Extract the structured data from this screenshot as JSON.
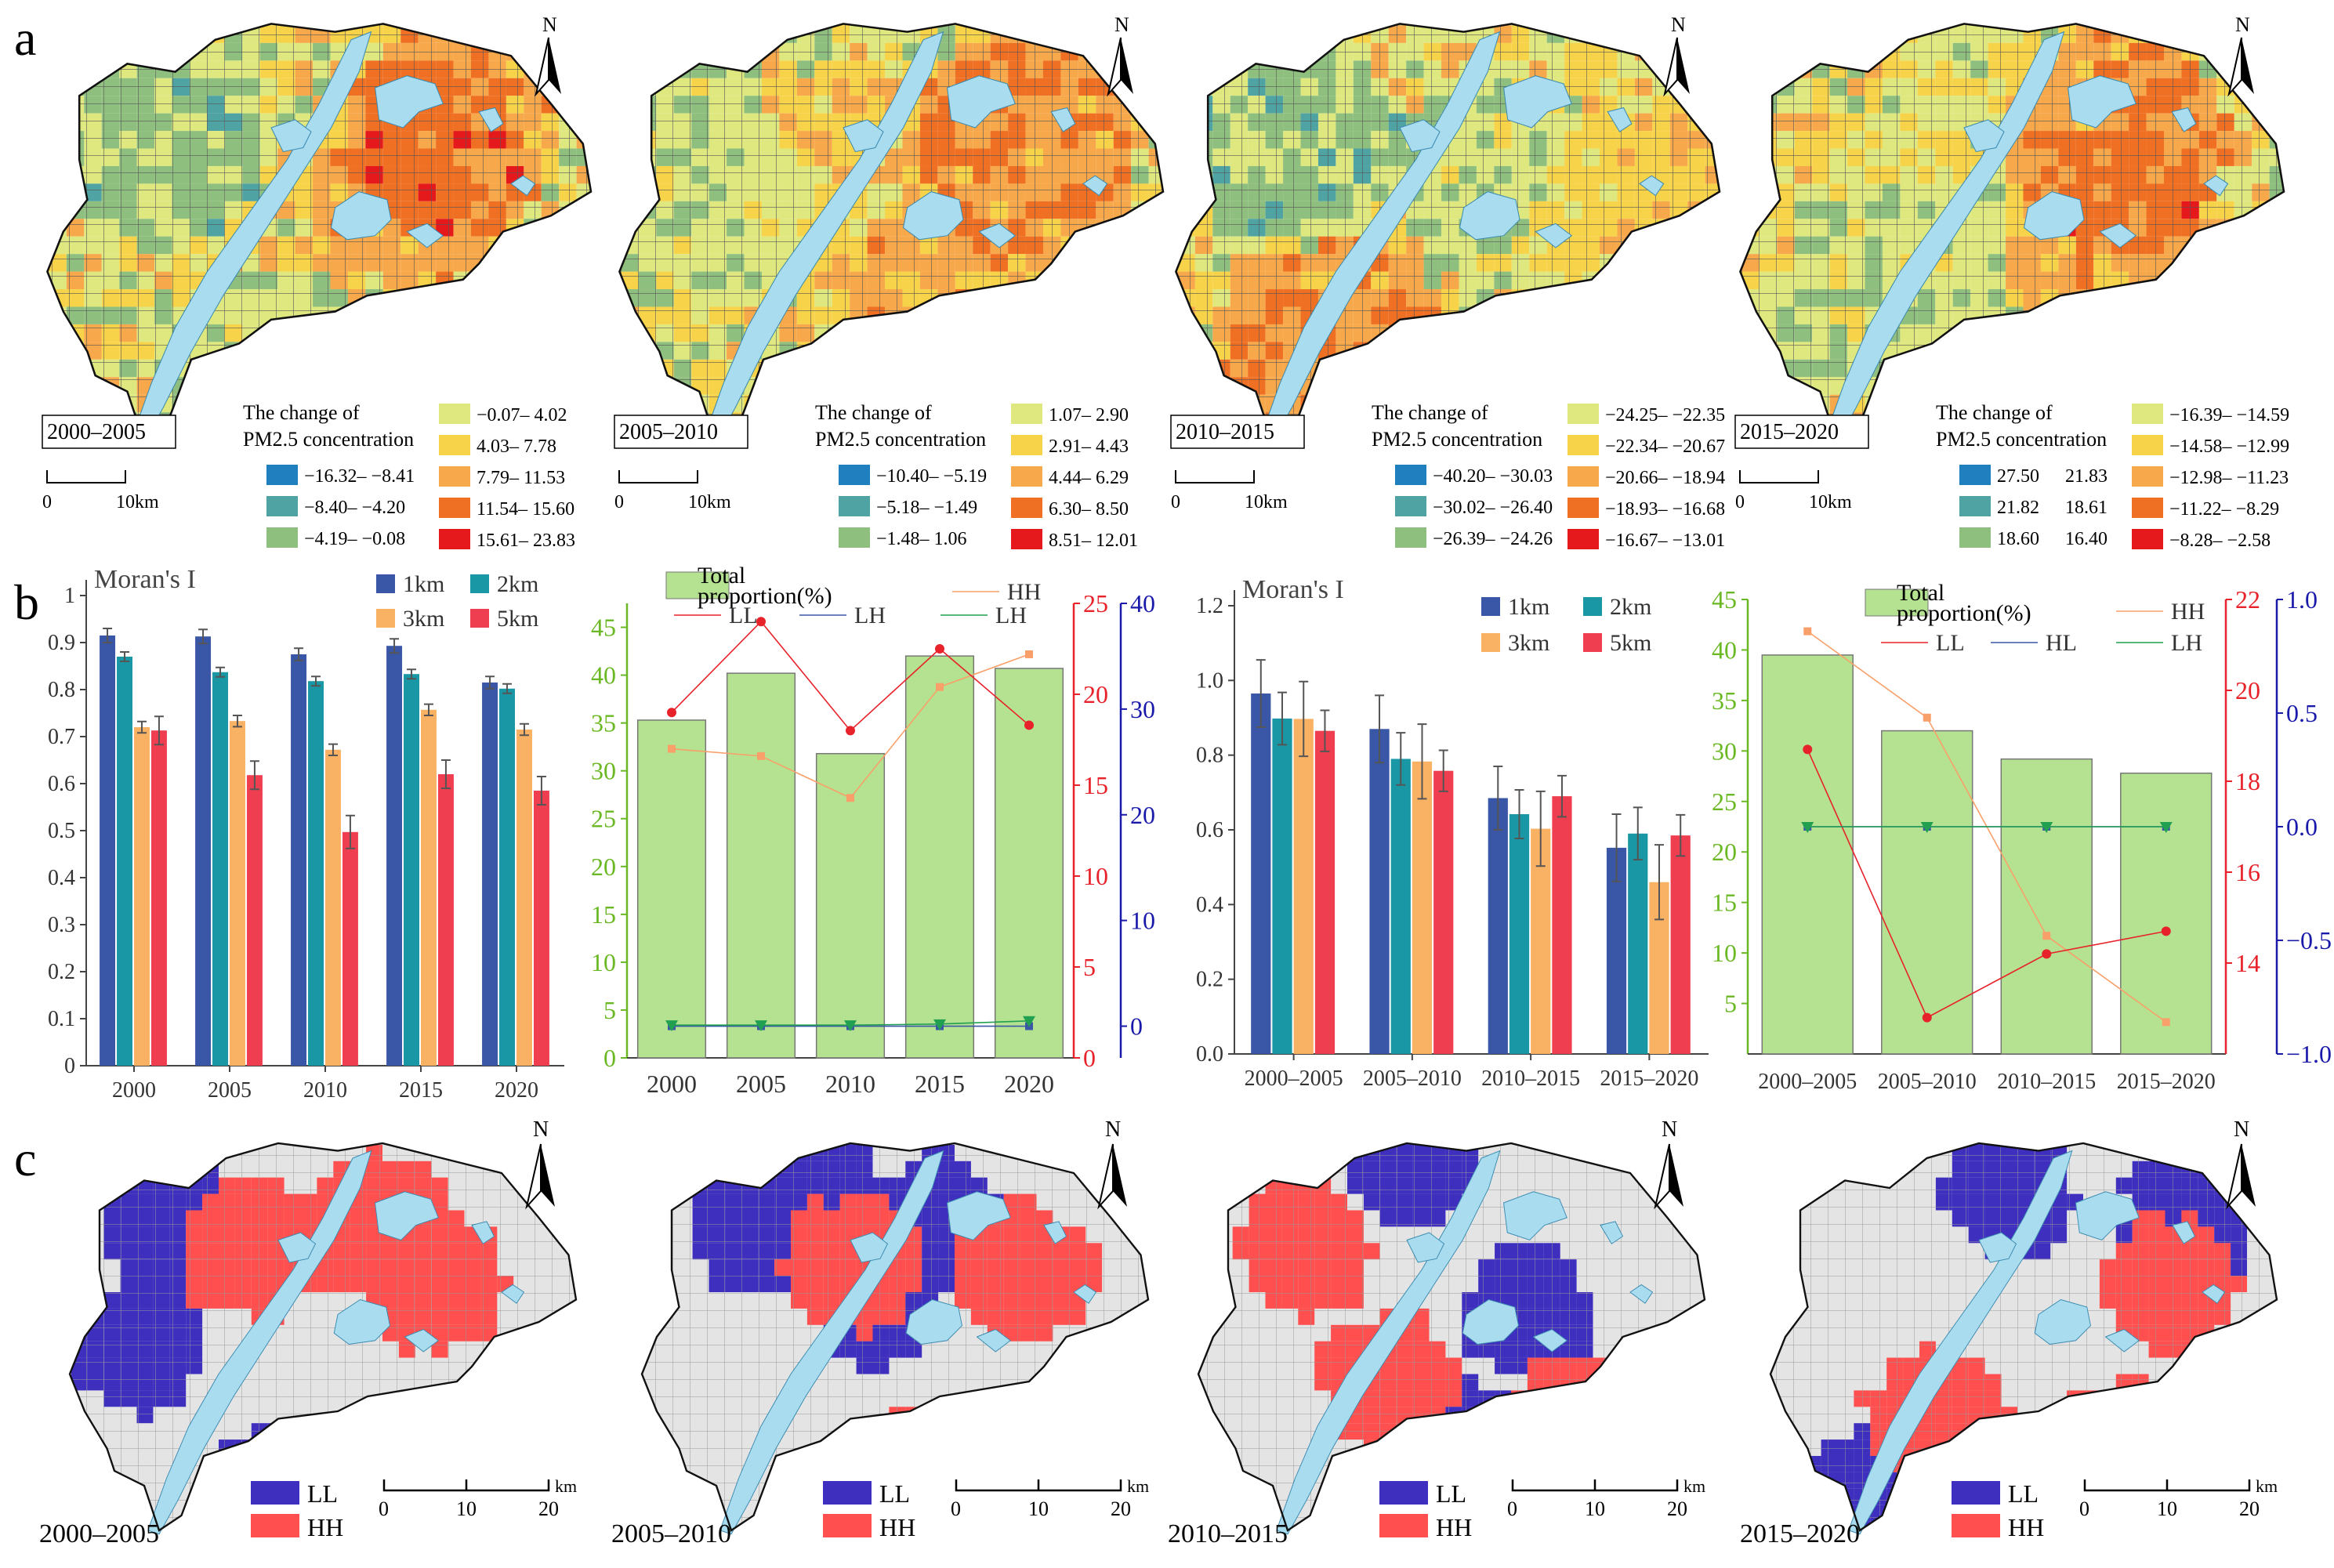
{
  "panel_labels": [
    "a",
    "b",
    "c"
  ],
  "north_label": "N",
  "km_label": "km",
  "colors": {
    "c1": "#1f7fbf",
    "c2": "#4fa3a3",
    "c3": "#8fbf7f",
    "c4": "#dfe77f",
    "c5": "#f7d34a",
    "c6": "#f7a84a",
    "c7": "#ef6f23",
    "c8": "#e5191c",
    "river": "#a9dcef",
    "LL": "#3f2fbf",
    "HH": "#ff4f4f",
    "grey": "#e4e4e4",
    "c1km": "#3a56a6",
    "c2km": "#1a97a4",
    "c3km": "#f9b164",
    "c5km": "#ef3e4f",
    "bar_green": "#b4e290",
    "axis_green": "#6ab823",
    "axis_red": "#e8222a",
    "axis_blue": "#1a1aaa",
    "line_orange": "#f9a06a",
    "line_red": "#e8222a",
    "line_blue": "#3a56a6",
    "line_green": "#20a050"
  },
  "maps_a": [
    {
      "period": "2000–2005",
      "legend_title_1": "The change of",
      "legend_title_2": "PM2.5 concentration",
      "legend": [
        "−16.32– −8.41",
        "−8.40– −4.20",
        "−4.19– −0.08",
        "−0.07– 4.02",
        "4.03– 7.78",
        "7.79– 11.53",
        "11.54– 15.60",
        "15.61– 23.83"
      ],
      "scale": [
        "0",
        "10km"
      ]
    },
    {
      "period": "2005–2010",
      "legend_title_1": "The change of",
      "legend_title_2": "PM2.5 concentration",
      "legend": [
        "−10.40– −5.19",
        "−5.18– −1.49",
        "−1.48– 1.06",
        "1.07– 2.90",
        "2.91– 4.43",
        "4.44– 6.29",
        "6.30– 8.50",
        "8.51– 12.01"
      ],
      "scale": [
        "0",
        "10km"
      ]
    },
    {
      "period": "2010–2015",
      "legend_title_1": "The change of",
      "legend_title_2": "PM2.5 concentration",
      "legend": [
        "−40.20– −30.03",
        "−30.02– −26.40",
        "−26.39– −24.26",
        "−24.25– −22.35",
        "−22.34– −20.67",
        "−20.66– −18.94",
        "−18.93– −16.68",
        "−16.67– −13.01"
      ],
      "scale": [
        "0",
        "10km"
      ]
    },
    {
      "period": "2015–2020",
      "legend_title_1": "The change of",
      "legend_title_2": "PM2.5 concentration",
      "legend": [
        "27.50",
        "21.82",
        "18.60",
        "21.83",
        "18.61",
        "16.40",
        "−16.39– −14.59",
        "−14.58– −12.99",
        "−12.98– −11.23",
        "−11.22– −8.29",
        "−8.28– −2.58"
      ],
      "scale": [
        "0",
        "10km"
      ]
    }
  ],
  "maps_c": [
    {
      "period": "2000–2005",
      "legend": [
        "LL",
        "HH"
      ],
      "scale": [
        "0",
        "10",
        "20"
      ]
    },
    {
      "period": "2005–2010",
      "legend": [
        "LL",
        "HH"
      ],
      "scale": [
        "0",
        "10",
        "20"
      ]
    },
    {
      "period": "2010–2015",
      "legend": [
        "LL",
        "HH"
      ],
      "scale": [
        "0",
        "10",
        "20"
      ]
    },
    {
      "period": "2015–2020",
      "legend": [
        "LL",
        "HH"
      ],
      "scale": [
        "0",
        "10",
        "20"
      ]
    }
  ],
  "chart_data": [
    {
      "type": "bar",
      "title": "Moran's I",
      "categories": [
        "2000",
        "2005",
        "2010",
        "2015",
        "2020"
      ],
      "ylim": [
        0,
        1
      ],
      "yticks": [
        "0",
        "0.1",
        "0.2",
        "0.3",
        "0.4",
        "0.5",
        "0.6",
        "0.7",
        "0.8",
        "0.9",
        "1"
      ],
      "series": [
        {
          "name": "1km",
          "values": [
            0.915,
            0.913,
            0.875,
            0.893,
            0.815
          ],
          "err": [
            0.015,
            0.015,
            0.013,
            0.015,
            0.013
          ]
        },
        {
          "name": "2km",
          "values": [
            0.87,
            0.837,
            0.818,
            0.833,
            0.802
          ],
          "err": [
            0.01,
            0.01,
            0.01,
            0.01,
            0.01
          ]
        },
        {
          "name": "3km",
          "values": [
            0.72,
            0.733,
            0.672,
            0.757,
            0.715
          ],
          "err": [
            0.012,
            0.012,
            0.012,
            0.012,
            0.012
          ]
        },
        {
          "name": "5km",
          "values": [
            0.713,
            0.618,
            0.497,
            0.62,
            0.585
          ],
          "err": [
            0.03,
            0.03,
            0.035,
            0.03,
            0.03
          ]
        }
      ]
    },
    {
      "type": "bar+line",
      "categories": [
        "2000",
        "2005",
        "2010",
        "2015",
        "2020"
      ],
      "bar": {
        "name": "Total proportion(%)",
        "values": [
          35.3,
          40.2,
          31.8,
          42.0,
          40.7
        ],
        "ylim": [
          0,
          47.5
        ],
        "yticks": [
          "0",
          "5",
          "10",
          "15",
          "20",
          "25",
          "30",
          "35",
          "40",
          "45"
        ]
      },
      "axis_red": {
        "ylim": [
          0,
          25
        ],
        "yticks": [
          "0",
          "5",
          "10",
          "15",
          "20",
          "25"
        ]
      },
      "axis_blue": {
        "ylim": [
          -3,
          40
        ],
        "yticks": [
          "0",
          "10",
          "20",
          "30",
          "40"
        ]
      },
      "lines": [
        {
          "name": "HH",
          "axis": "red",
          "values": [
            17.0,
            16.6,
            14.3,
            20.4,
            22.2
          ]
        },
        {
          "name": "LL",
          "axis": "red",
          "values": [
            19.0,
            24.0,
            18.0,
            22.5,
            18.3
          ]
        },
        {
          "name": "LH",
          "axis": "blue",
          "values": [
            0.0,
            0.0,
            0.0,
            0.0,
            0.0
          ]
        },
        {
          "name": "LH",
          "axis": "blue",
          "values": [
            0.1,
            0.1,
            0.1,
            0.2,
            0.5
          ]
        }
      ]
    },
    {
      "type": "bar",
      "title": "Moran's I",
      "categories": [
        "2000–2005",
        "2005–2010",
        "2010–2015",
        "2015–2020"
      ],
      "ylim": [
        0,
        1.2
      ],
      "yticks": [
        "0.0",
        "0.2",
        "0.4",
        "0.6",
        "0.8",
        "1.0",
        "1.2"
      ],
      "series": [
        {
          "name": "1km",
          "values": [
            0.965,
            0.87,
            0.685,
            0.552
          ],
          "err": [
            0.09,
            0.09,
            0.085,
            0.09
          ]
        },
        {
          "name": "2km",
          "values": [
            0.898,
            0.79,
            0.642,
            0.59
          ],
          "err": [
            0.07,
            0.07,
            0.065,
            0.07
          ]
        },
        {
          "name": "3km",
          "values": [
            0.897,
            0.783,
            0.603,
            0.46
          ],
          "err": [
            0.1,
            0.1,
            0.1,
            0.1
          ]
        },
        {
          "name": "5km",
          "values": [
            0.865,
            0.758,
            0.69,
            0.585
          ],
          "err": [
            0.055,
            0.055,
            0.055,
            0.055
          ]
        }
      ]
    },
    {
      "type": "bar+line",
      "categories": [
        "2000–2005",
        "2005–2010",
        "2010–2015",
        "2015–2020"
      ],
      "bar": {
        "name": "Total proportion(%)",
        "values": [
          39.5,
          32.0,
          29.2,
          27.8
        ],
        "ylim": [
          0,
          45
        ],
        "yticks": [
          "5",
          "10",
          "15",
          "20",
          "25",
          "30",
          "35",
          "40",
          "45"
        ]
      },
      "axis_red": {
        "ylim": [
          12,
          22
        ],
        "yticks": [
          "14",
          "16",
          "18",
          "20",
          "22"
        ]
      },
      "axis_blue": {
        "ylim": [
          -1,
          1
        ],
        "yticks": [
          "−1.0",
          "−0.5",
          "0.0",
          "0.5",
          "1.0"
        ]
      },
      "lines": [
        {
          "name": "HH",
          "axis": "red",
          "values": [
            21.3,
            19.4,
            14.6,
            12.7
          ]
        },
        {
          "name": "LL",
          "axis": "red",
          "values": [
            18.7,
            12.8,
            14.2,
            14.7
          ]
        },
        {
          "name": "HL",
          "axis": "blue",
          "values": [
            0.0,
            0.0,
            0.0,
            0.0
          ]
        },
        {
          "name": "LH",
          "axis": "blue",
          "values": [
            0.0,
            0.0,
            0.0,
            0.0
          ]
        }
      ]
    }
  ]
}
